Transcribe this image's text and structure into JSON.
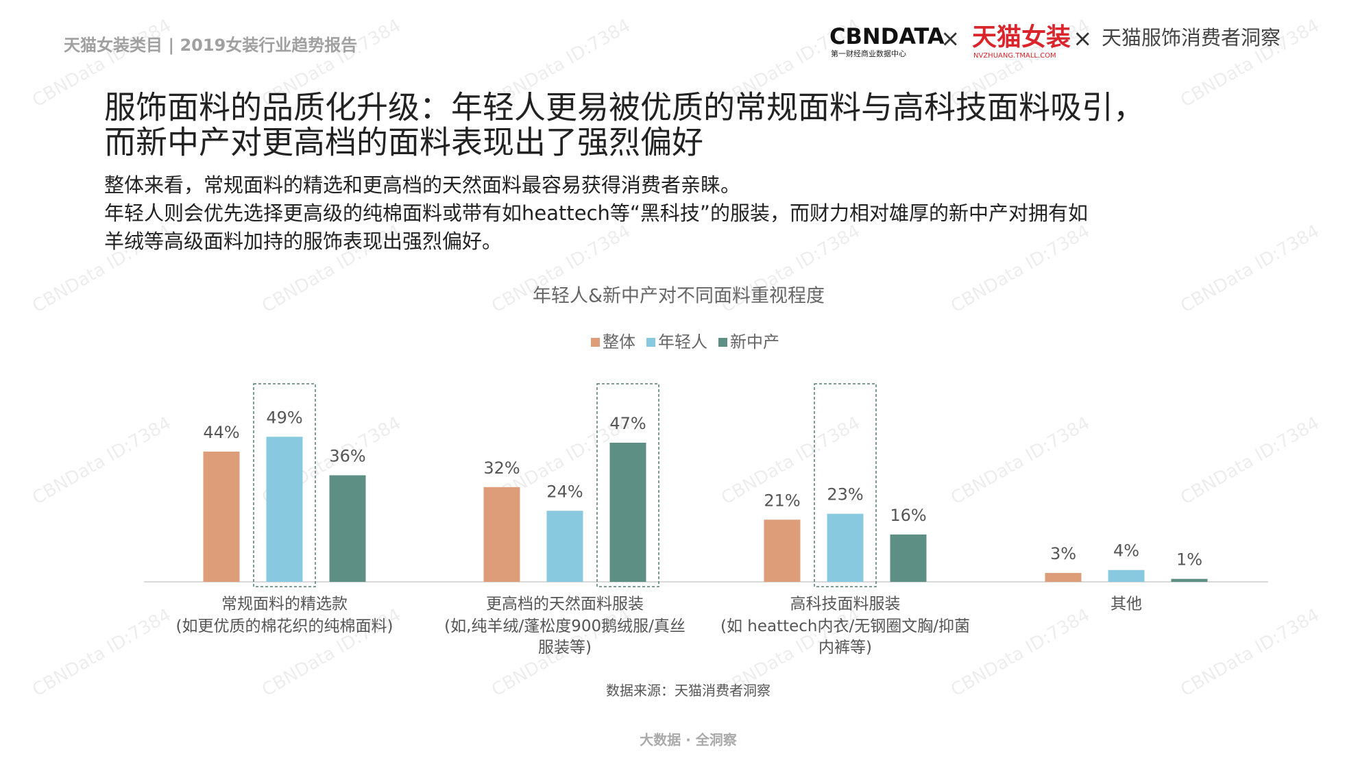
{
  "header": {
    "report": "天猫女装类目 | 2019女装行业趋势报告",
    "logo_cbn": "CBNDATA",
    "logo_cbn_sub": "第一财经商业数据中心",
    "times": "×",
    "logo_tmall": "天猫女装",
    "logo_tmall_sub": "NVZHUANG.TMALL.COM",
    "partner": "天猫服饰消费者洞察"
  },
  "title": [
    "服饰面料的品质化升级：年轻人更易被优质的常规面料与高科技面料吸引，",
    "而新中产对更高档的面料表现出了强烈偏好"
  ],
  "body": [
    "整体来看，常规面料的精选和更高档的天然面料最容易获得消费者亲睐。",
    "年轻人则会优先选择更高级的纯棉面料或带有如heattech等“黑科技”的服装，而财力相对雄厚的新中产对拥有如",
    "羊绒等高级面料加持的服饰表现出强烈偏好。"
  ],
  "chart_data": {
    "type": "bar",
    "title": "年轻人&新中产对不同面料重视程度",
    "categories": [
      "常规面料的精选款",
      "更高档的天然面料服装",
      "高科技面料服装",
      "其他"
    ],
    "category_notes": [
      "(如更优质的棉花织的纯棉面料)",
      "(如,纯羊绒/蓬松度900鹅绒服/真丝服装等)",
      "(如 heattech内衣/无钢圈文胸/抑菌内裤等)",
      null
    ],
    "series": [
      {
        "name": "整体",
        "color": "#dd9d78",
        "values": [
          44,
          32,
          21,
          3
        ],
        "value_labels": [
          "44%",
          "32%",
          "21%",
          "3%"
        ]
      },
      {
        "name": "年轻人",
        "color": "#88c9e0",
        "values": [
          49,
          24,
          23,
          4
        ],
        "value_labels": [
          "49%",
          "24%",
          "23%",
          "4%"
        ]
      },
      {
        "name": "新中产",
        "color": "#5e8f85",
        "values": [
          36,
          47,
          16,
          1
        ],
        "value_labels": [
          "36%",
          "47%",
          "16%",
          "1%"
        ]
      }
    ],
    "highlight": [
      {
        "series": 1,
        "category": 0
      },
      {
        "series": 2,
        "category": 1
      },
      {
        "series": 1,
        "category": 2
      }
    ],
    "legend": "top"
  },
  "source": "数据来源：天猫消费者洞察",
  "footer": "大数据 · 全洞察",
  "watermark": "CBNData ID:7384"
}
